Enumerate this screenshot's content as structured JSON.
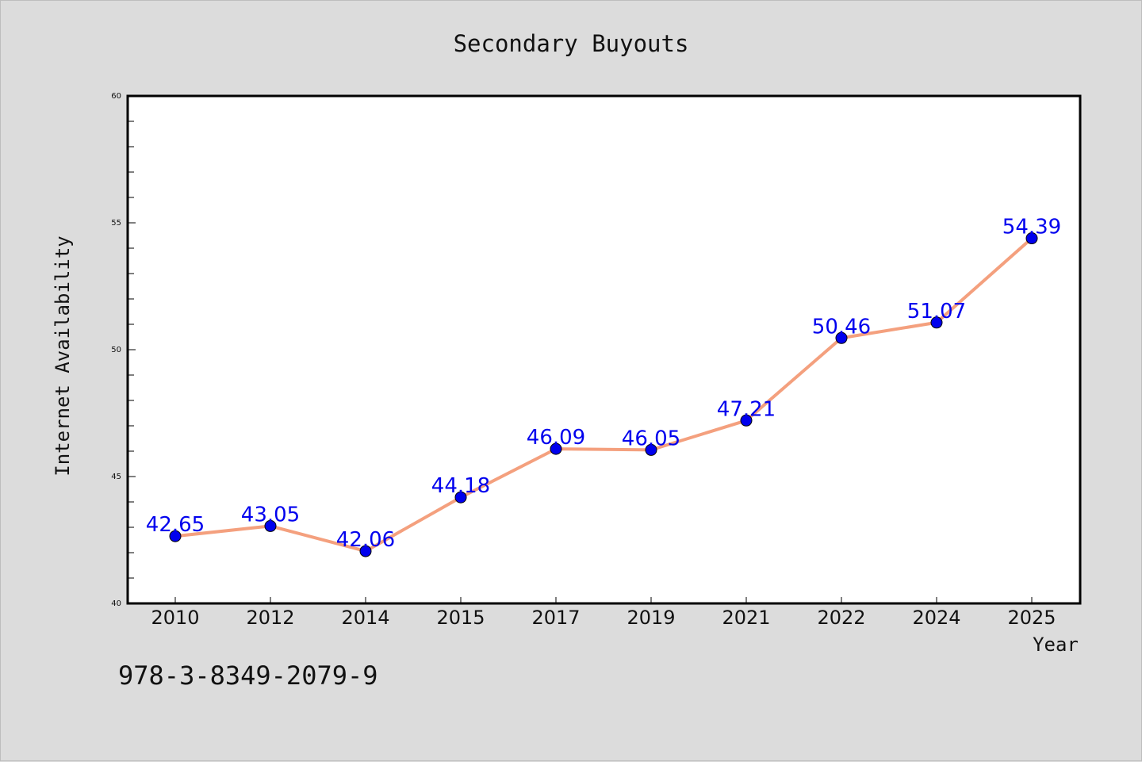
{
  "chart_data": {
    "type": "line",
    "title": "Secondary Buyouts",
    "xlabel": "Year",
    "ylabel": "Internet Availability",
    "categories": [
      "2010",
      "2012",
      "2014",
      "2015",
      "2017",
      "2019",
      "2021",
      "2022",
      "2024",
      "2025"
    ],
    "series": [
      {
        "values": [
          42.65,
          43.05,
          42.06,
          44.18,
          46.09,
          46.05,
          47.21,
          50.46,
          51.07,
          54.39
        ],
        "labels": [
          "42.65",
          "43.05",
          "42.06",
          "44.18",
          "46.09",
          "46.05",
          "47.21",
          "50.46",
          "51.07",
          "54.39"
        ]
      }
    ],
    "ylim": [
      40,
      60
    ],
    "yticks": [
      "40",
      "45",
      "50",
      "55",
      "60"
    ],
    "grid": false,
    "colors": {
      "line": "#f4a07e",
      "marker": "#0000ee",
      "label": "#0000ee",
      "background": "#dcdcdc",
      "plot": "#ffffff"
    }
  },
  "footer": {
    "isbn": "978-3-8349-2079-9"
  }
}
